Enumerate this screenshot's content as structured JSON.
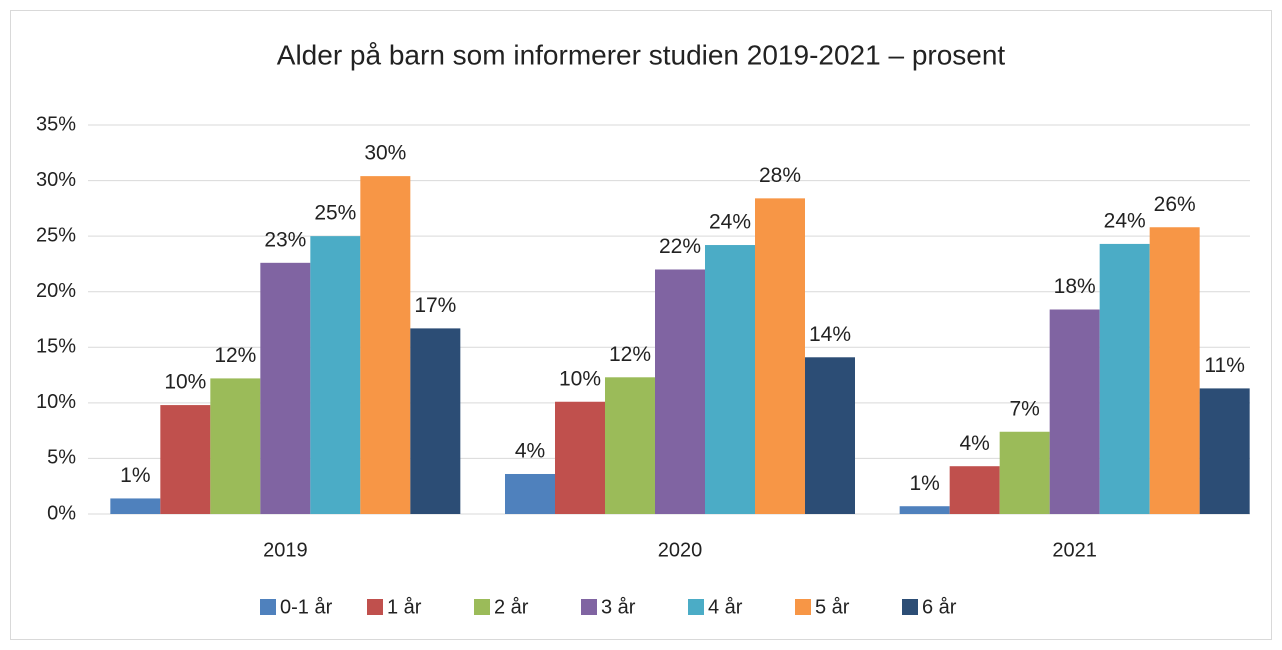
{
  "chart_data": {
    "type": "bar",
    "title": "Alder på barn som informerer studien 2019-2021 – prosent",
    "categories": [
      "2019",
      "2020",
      "2021"
    ],
    "series": [
      {
        "name": "0-1 år",
        "color": "#4f81bd",
        "values": [
          1.4,
          3.6,
          0.7
        ],
        "value_labels": [
          "1%",
          "4%",
          "1%"
        ]
      },
      {
        "name": "1 år",
        "color": "#c0504d",
        "values": [
          9.8,
          10.1,
          4.3
        ],
        "value_labels": [
          "10%",
          "10%",
          "4%"
        ]
      },
      {
        "name": "2 år",
        "color": "#9bbb59",
        "values": [
          12.2,
          12.3,
          7.4
        ],
        "value_labels": [
          "12%",
          "12%",
          "7%"
        ]
      },
      {
        "name": "3 år",
        "color": "#8064a2",
        "values": [
          22.6,
          22.0,
          18.4
        ],
        "value_labels": [
          "23%",
          "22%",
          "18%"
        ]
      },
      {
        "name": "4 år",
        "color": "#4bacc6",
        "values": [
          25.0,
          24.2,
          24.3
        ],
        "value_labels": [
          "25%",
          "24%",
          "24%"
        ]
      },
      {
        "name": "5 år",
        "color": "#f79646",
        "values": [
          30.4,
          28.4,
          25.8
        ],
        "value_labels": [
          "30%",
          "28%",
          "26%"
        ]
      },
      {
        "name": "6 år",
        "color": "#2c4d75",
        "values": [
          16.7,
          14.1,
          11.3
        ],
        "value_labels": [
          "17%",
          "14%",
          "11%"
        ]
      }
    ],
    "ylim": [
      0,
      35
    ],
    "yticks": [
      {
        "value": 0,
        "label": "0%"
      },
      {
        "value": 5,
        "label": "5%"
      },
      {
        "value": 10,
        "label": "10%"
      },
      {
        "value": 15,
        "label": "15%"
      },
      {
        "value": 20,
        "label": "20%"
      },
      {
        "value": 25,
        "label": "25%"
      },
      {
        "value": 30,
        "label": "30%"
      },
      {
        "value": 35,
        "label": "35%"
      }
    ],
    "grid": true,
    "legend": "bottom"
  }
}
